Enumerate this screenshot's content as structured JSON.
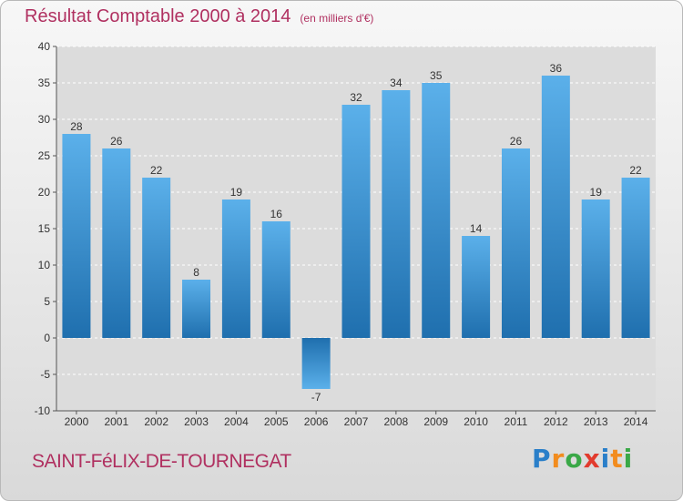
{
  "chart_data": {
    "type": "bar",
    "title": "Résultat Comptable 2000 à 2014",
    "subtitle": "(en milliers d'€)",
    "categories": [
      "2000",
      "2001",
      "2002",
      "2003",
      "2004",
      "2005",
      "2006",
      "2007",
      "2008",
      "2009",
      "2010",
      "2011",
      "2012",
      "2013",
      "2014"
    ],
    "values": [
      28,
      26,
      22,
      8,
      19,
      16,
      -7,
      32,
      34,
      35,
      14,
      26,
      36,
      19,
      22
    ],
    "value_labels": [
      "28",
      "26",
      "22",
      "8",
      "19",
      "16",
      "-7",
      "32",
      "34",
      "35",
      "14",
      "26",
      "36",
      "19",
      "22"
    ],
    "yticks": [
      -10,
      -5,
      0,
      5,
      10,
      15,
      20,
      25,
      30,
      35,
      40
    ],
    "ytick_labels": [
      "-10",
      "-5",
      "0",
      "5",
      "10",
      "15",
      "20",
      "25",
      "30",
      "35",
      "40"
    ],
    "ylim": [
      -10,
      40
    ],
    "xlabel": "",
    "ylabel": "",
    "grid": true,
    "colors": {
      "bar_top": "#5bb0ea",
      "bar_bottom": "#1f6fae",
      "title": "#b03060",
      "grid": "#ffffff"
    }
  },
  "footer": {
    "commune": "SAINT-FéLIX-DE-TOURNEGAT",
    "logo_letters": [
      "P",
      "r",
      "o",
      "x",
      "i",
      "t",
      "i"
    ],
    "logo_colors": [
      "#2a7fc9",
      "#f28c1e",
      "#3aa847",
      "#e23b2e",
      "#2a7fc9",
      "#f28c1e",
      "#3aa847"
    ]
  }
}
